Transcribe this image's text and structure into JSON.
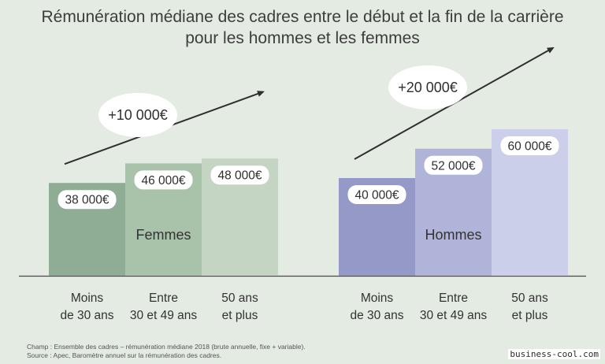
{
  "title_line1": "Rémunération médiane des cadres entre le début et la fin de la carrière",
  "title_line2": "pour les hommes et les femmes",
  "chart_data": {
    "type": "bar",
    "categories": [
      "Moins de 30 ans",
      "Entre 30 et 49 ans",
      "50 ans et plus"
    ],
    "category_lines": [
      [
        "Moins",
        "de 30 ans"
      ],
      [
        "Entre",
        "30 et 49 ans"
      ],
      [
        "50 ans",
        "et plus"
      ]
    ],
    "ylim": [
      0,
      70000
    ],
    "unit": "€",
    "groups": [
      {
        "name": "Femmes",
        "values": [
          38000,
          46000,
          48000
        ],
        "value_labels": [
          "38 000€",
          "46 000€",
          "48 000€"
        ],
        "colors": [
          "#8fad94",
          "#a9c2aa",
          "#c5d5c3"
        ],
        "increase_label": "+10 000€"
      },
      {
        "name": "Hommes",
        "values": [
          40000,
          52000,
          60000
        ],
        "value_labels": [
          "40 000€",
          "52 000€",
          "60 000€"
        ],
        "colors": [
          "#9599c7",
          "#b1b4d9",
          "#cccfe9"
        ],
        "increase_label": "+20 000€"
      }
    ]
  },
  "footer": {
    "champ": "Champ : Ensemble des cadres – rémunération médiane 2018 (brute annuelle, fixe + variable).",
    "source": "Source : Apec, Baromètre annuel sur la rémunération des cadres."
  },
  "watermark": "business-cool.com"
}
